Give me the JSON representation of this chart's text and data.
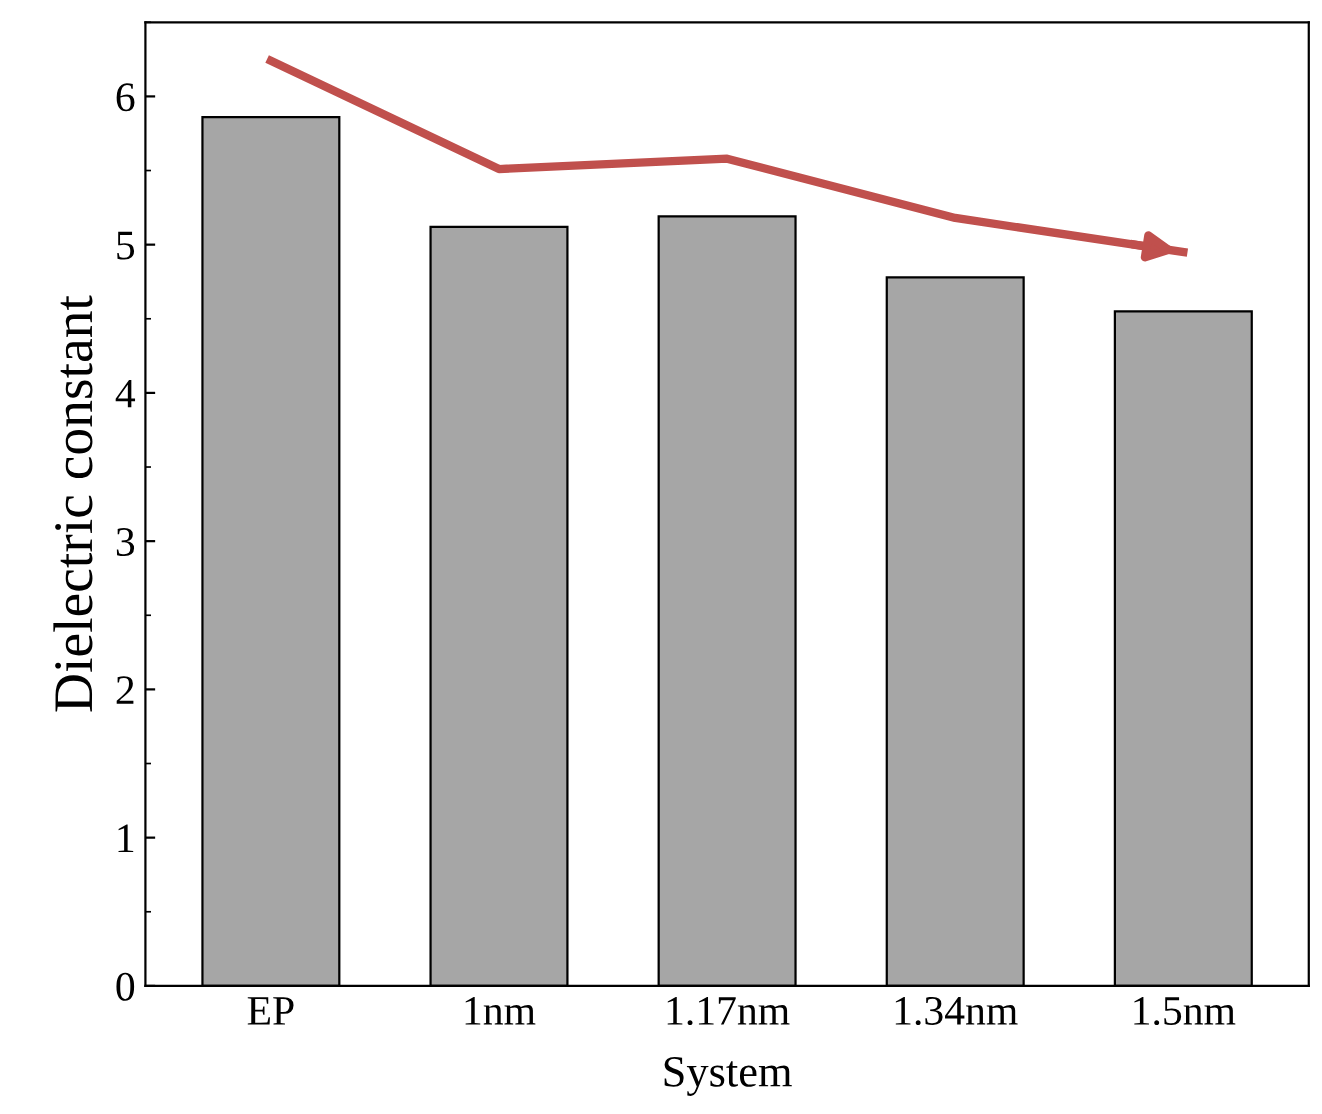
{
  "chart_data": {
    "type": "bar",
    "xlabel": "System",
    "ylabel": "Dielectric constant",
    "categories": [
      "EP",
      "1nm",
      "1.17nm",
      "1.34nm",
      "1.5nm"
    ],
    "series": [
      {
        "color": "#a6a6a6",
        "values": [
          5.86,
          5.12,
          5.19,
          4.78,
          4.55
        ]
      },
      {
        "type": "line",
        "color": "#c0504d",
        "values": [
          6.24,
          5.51,
          5.58,
          5.18,
          4.95
        ]
      }
    ],
    "ylim": [
      0,
      6.5
    ],
    "yticks": [
      0,
      1,
      2,
      3,
      4,
      5,
      6
    ],
    "grid": false,
    "legend": false,
    "marker": "none",
    "line_style": "solid"
  }
}
